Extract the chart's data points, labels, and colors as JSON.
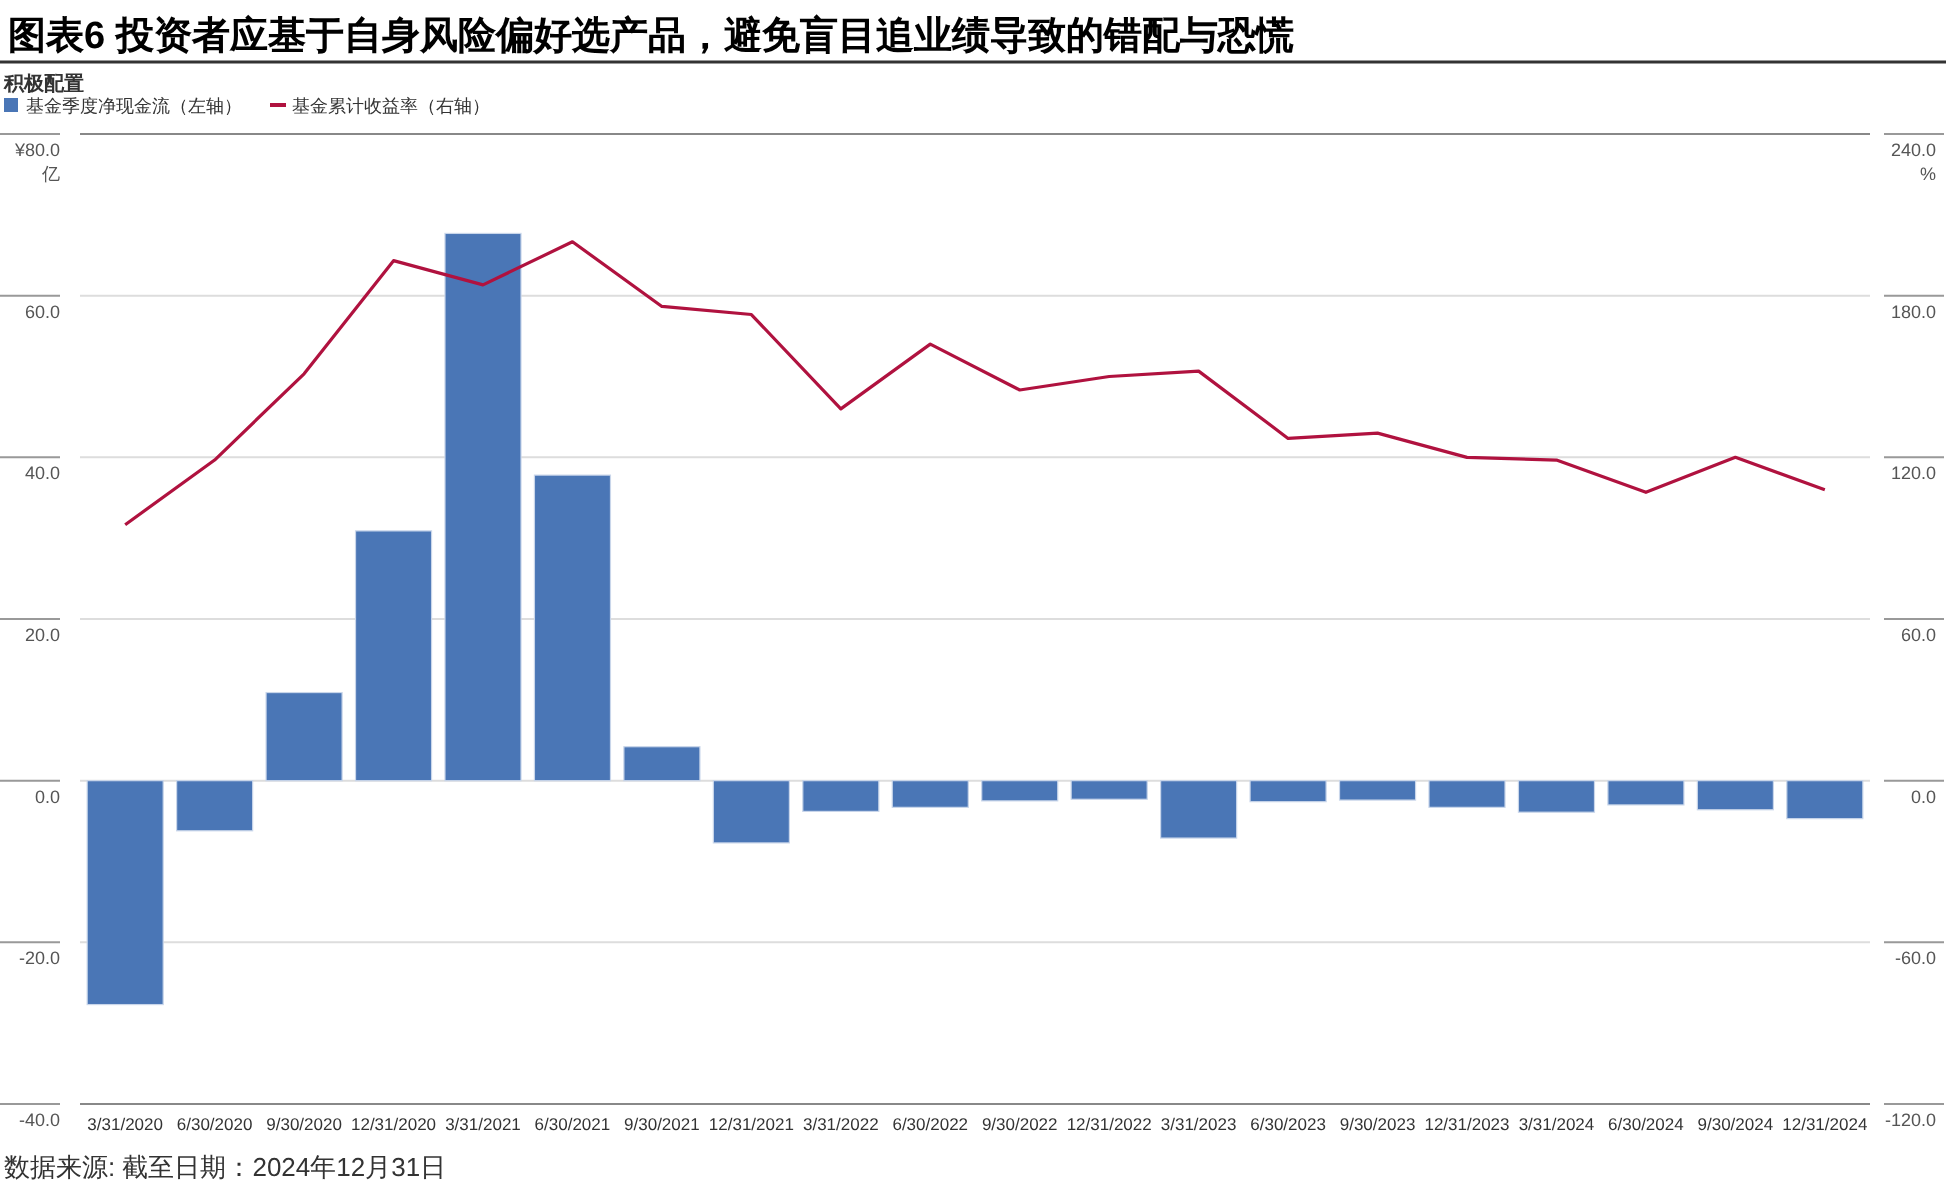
{
  "chart_data": {
    "type": "bar",
    "title": "图表6 投资者应基于自身风险偏好选产品，避免盲目追业绩导致的错配与恐慌",
    "subtitle": "积极配置",
    "ylabel": "亿",
    "y2label": "%",
    "annotations": [
      "数据来源: 截至日期：2024年12月31日"
    ],
    "categories": [
      "3/31/2020",
      "6/30/2020",
      "9/30/2020",
      "12/31/2020",
      "3/31/2021",
      "6/30/2021",
      "9/30/2021",
      "12/31/2021",
      "3/31/2022",
      "6/30/2022",
      "9/30/2022",
      "12/31/2022",
      "3/31/2023",
      "6/30/2023",
      "9/30/2023",
      "12/31/2023",
      "3/31/2024",
      "6/30/2024",
      "9/30/2024",
      "12/31/2024"
    ],
    "series": [
      {
        "name": "基金季度净现金流（左轴）",
        "color": "#4a76b6",
        "values": [
          -27.7,
          -6.2,
          10.9,
          30.9,
          67.7,
          37.8,
          4.2,
          -7.7,
          -3.8,
          -3.3,
          -2.5,
          -2.3,
          -7.1,
          -2.6,
          -2.4,
          -3.3,
          -3.9,
          -3.0,
          -3.6,
          -4.7
        ]
      },
      {
        "name": "基金累计收益率（右轴）",
        "type": "line",
        "axis": "y2",
        "color": "#b0123f",
        "values": [
          95,
          119,
          151,
          193,
          184,
          200,
          176,
          173,
          138,
          162,
          145,
          150,
          152,
          127,
          129,
          120,
          119,
          107,
          120,
          108
        ]
      }
    ],
    "ylim": [
      -40,
      80
    ],
    "yticks": [
      {
        "value": -40,
        "label": "-40.0"
      },
      {
        "value": -20,
        "label": "-20.0"
      },
      {
        "value": 0,
        "label": "0.0"
      },
      {
        "value": 20,
        "label": "20.0"
      },
      {
        "value": 40,
        "label": "40.0"
      },
      {
        "value": 60,
        "label": "60.0"
      },
      {
        "value": 80,
        "label": "¥80.0"
      }
    ],
    "y2lim": [
      -120,
      240
    ],
    "y2ticks": [
      {
        "value": -120,
        "label": "-120.0"
      },
      {
        "value": -60,
        "label": "-60.0"
      },
      {
        "value": 0,
        "label": "0.0"
      },
      {
        "value": 60,
        "label": "60.0"
      },
      {
        "value": 120,
        "label": "120.0"
      },
      {
        "value": 180,
        "label": "180.0"
      },
      {
        "value": 240,
        "label": "240.0"
      }
    ],
    "grid": "y",
    "legend": "top left",
    "marker": "none",
    "line_style": "solid"
  }
}
